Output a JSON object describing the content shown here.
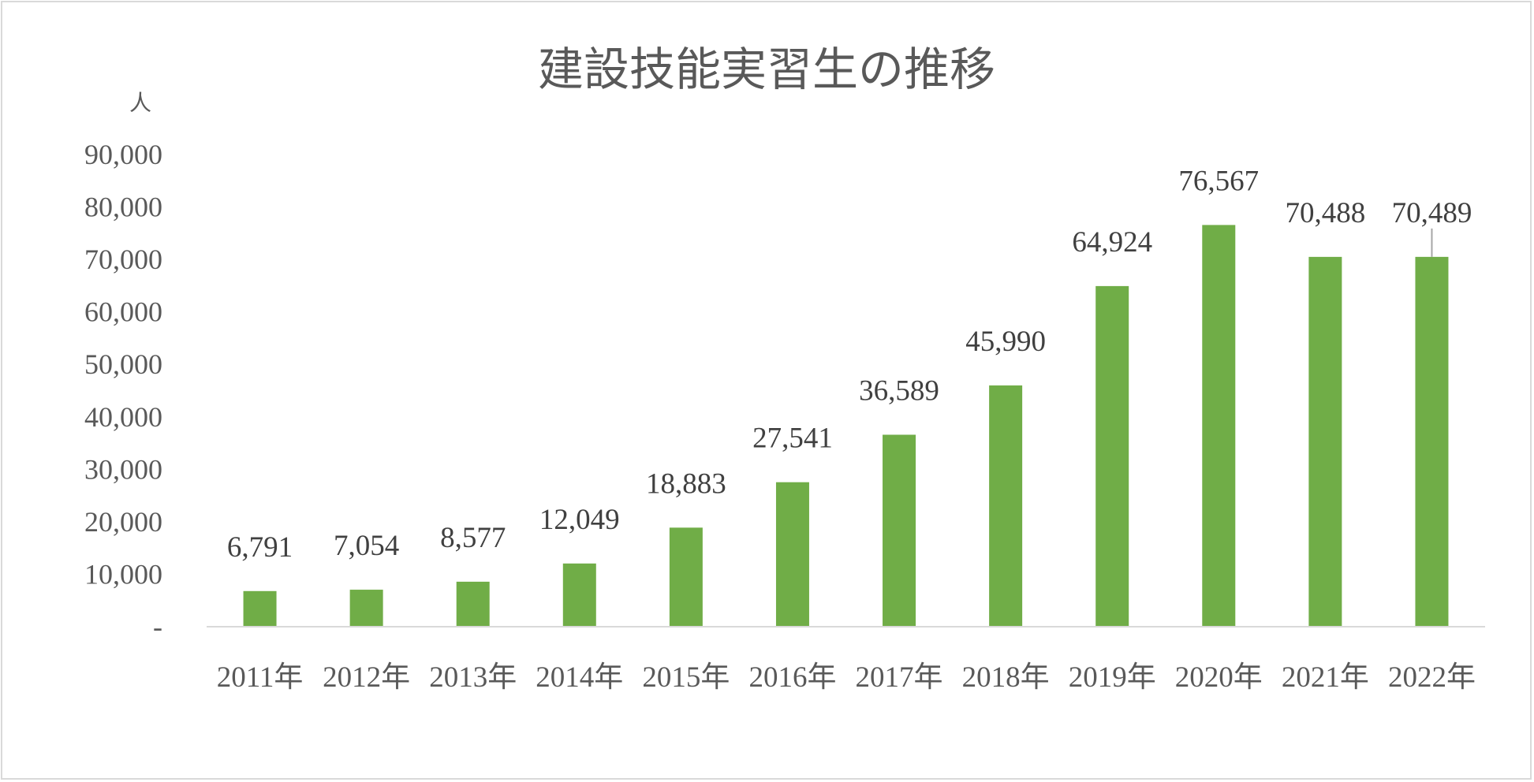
{
  "chart_data": {
    "type": "bar",
    "title": "建設技能実習生の推移",
    "ylabel": "人",
    "xlabel": "",
    "categories": [
      "2011年",
      "2012年",
      "2013年",
      "2014年",
      "2015年",
      "2016年",
      "2017年",
      "2018年",
      "2019年",
      "2020年",
      "2021年",
      "2022年"
    ],
    "values": [
      6791,
      7054,
      8577,
      12049,
      18883,
      27541,
      36589,
      45990,
      64924,
      76567,
      70488,
      70489
    ],
    "data_labels": [
      "6,791",
      "7,054",
      "8,577",
      "12,049",
      "18,883",
      "27,541",
      "36,589",
      "45,990",
      "64,924",
      "76,567",
      "70,488",
      "70,489"
    ],
    "ylim": [
      0,
      90000
    ],
    "yticks": [
      0,
      10000,
      20000,
      30000,
      40000,
      50000,
      60000,
      70000,
      80000,
      90000
    ],
    "ytick_labels": [
      "-",
      "10,000",
      "20,000",
      "30,000",
      "40,000",
      "50,000",
      "60,000",
      "70,000",
      "80,000",
      "90,000"
    ],
    "grid": false,
    "legend": "none",
    "colors": {
      "bar": "#70ad47",
      "axis": "#d9d9d9",
      "text": "#595959"
    }
  }
}
